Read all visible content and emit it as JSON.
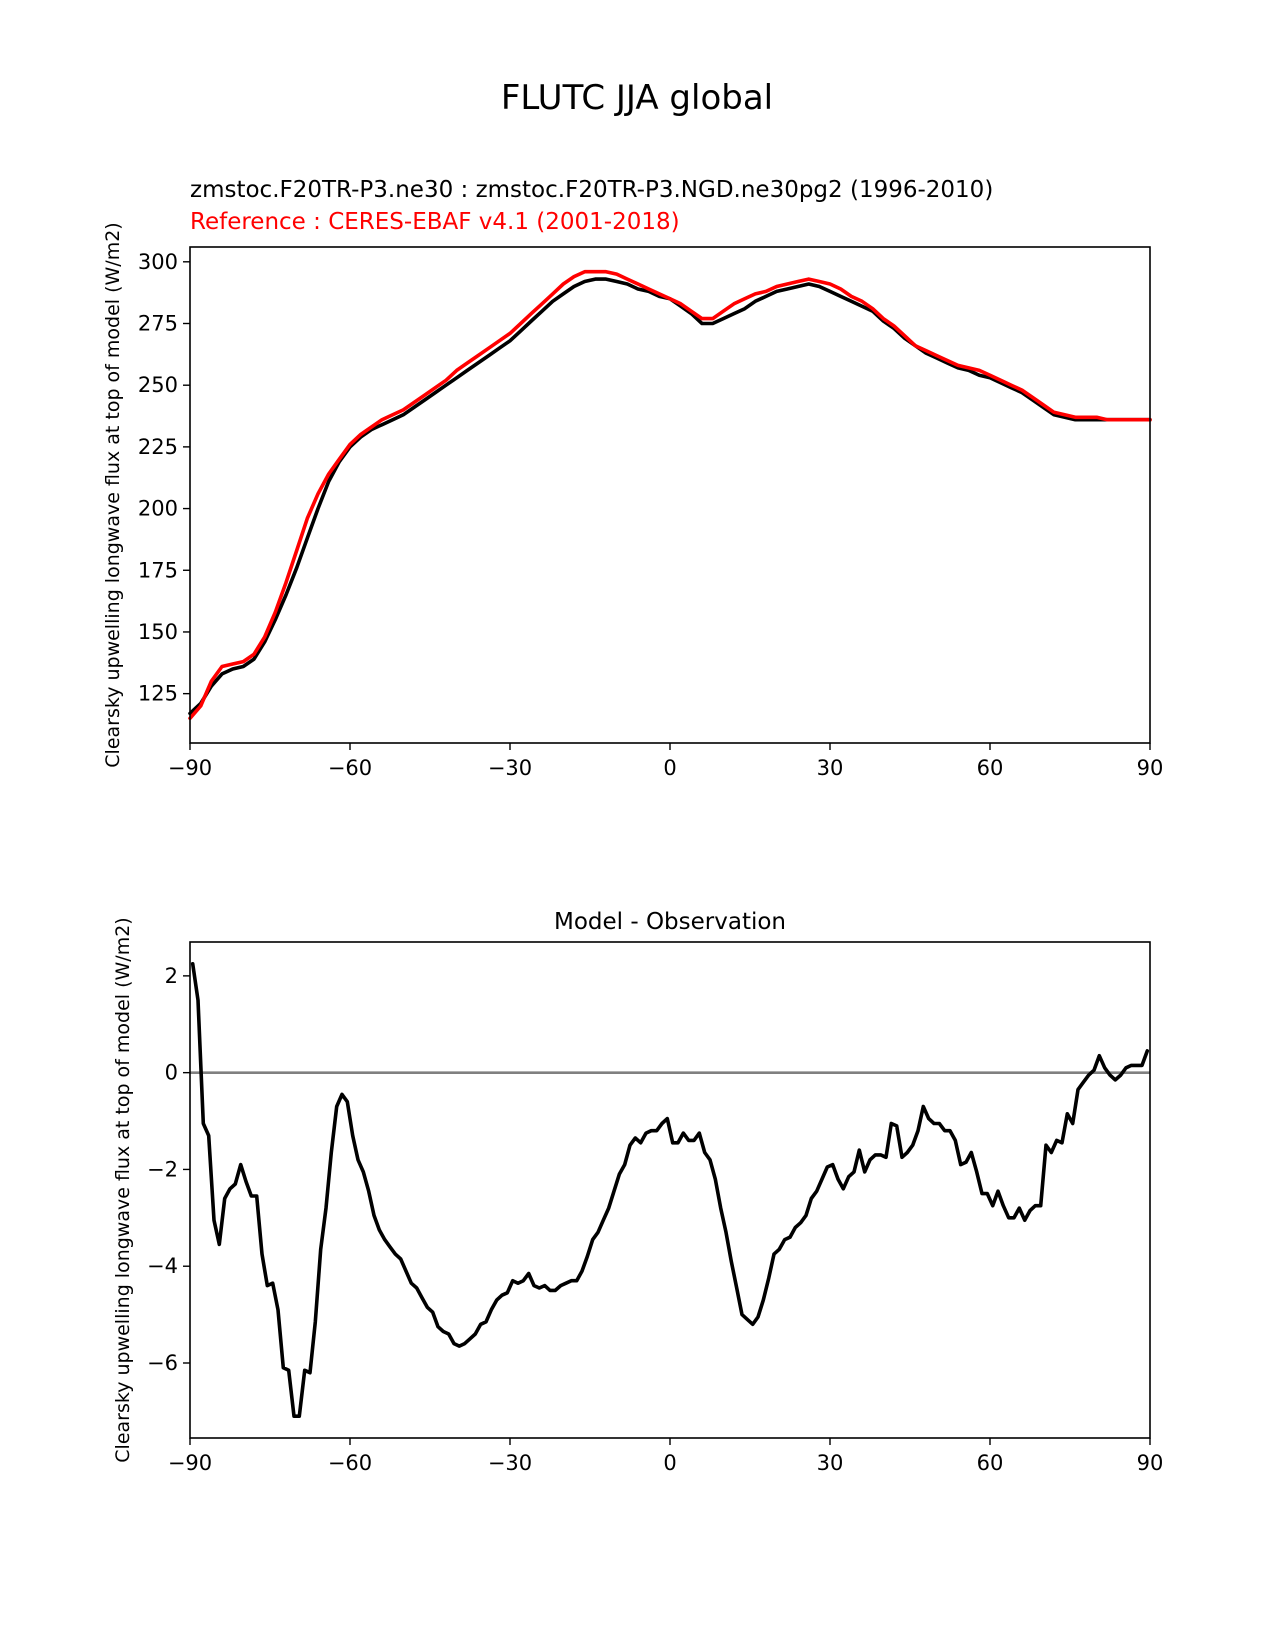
{
  "figure": {
    "title": "FLUTC JJA global"
  },
  "chart_data": [
    {
      "type": "line",
      "subtitle": "zmstoc.F20TR-P3.ne30 : zmstoc.F20TR-P3.NGD.ne30pg2 (1996-2010)",
      "reference_label": "Reference : CERES-EBAF v4.1 (2001-2018)",
      "xlabel": "",
      "ylabel": "Clearsky upwelling longwave flux at top of model (W/m2)",
      "xlim": [
        -90,
        90
      ],
      "ylim": [
        105,
        306
      ],
      "xticks": [
        -90,
        -60,
        -30,
        0,
        30,
        60,
        90
      ],
      "xtick_labels": [
        "−90",
        "−60",
        "−30",
        "0",
        "30",
        "60",
        "90"
      ],
      "yticks": [
        125,
        150,
        175,
        200,
        225,
        250,
        275,
        300
      ],
      "ytick_labels": [
        "125",
        "150",
        "175",
        "200",
        "225",
        "250",
        "275",
        "300"
      ],
      "grid": false,
      "series": [
        {
          "color": "#000000",
          "x": [
            -90,
            -88,
            -86,
            -84,
            -82,
            -80,
            -78,
            -76,
            -74,
            -72,
            -70,
            -68,
            -66,
            -64,
            -62,
            -60,
            -58,
            -56,
            -54,
            -52,
            -50,
            -48,
            -46,
            -44,
            -42,
            -40,
            -38,
            -36,
            -34,
            -32,
            -30,
            -28,
            -26,
            -24,
            -22,
            -20,
            -18,
            -16,
            -14,
            -12,
            -10,
            -8,
            -6,
            -4,
            -2,
            0,
            2,
            4,
            6,
            8,
            10,
            12,
            14,
            16,
            18,
            20,
            22,
            24,
            26,
            28,
            30,
            32,
            34,
            36,
            38,
            40,
            42,
            44,
            46,
            48,
            50,
            52,
            54,
            56,
            58,
            60,
            62,
            64,
            66,
            68,
            70,
            72,
            74,
            76,
            78,
            80,
            82,
            84,
            86,
            88,
            90
          ],
          "y": [
            117,
            121,
            128,
            133,
            135,
            136,
            139,
            146,
            155,
            165,
            176,
            188,
            200,
            211,
            219,
            225,
            229,
            232,
            234,
            236,
            238,
            241,
            244,
            247,
            250,
            253,
            256,
            259,
            262,
            265,
            268,
            272,
            276,
            280,
            284,
            287,
            290,
            292,
            293,
            293,
            292,
            291,
            289,
            288,
            286,
            285,
            282,
            279,
            275,
            275,
            277,
            279,
            281,
            284,
            286,
            288,
            289,
            290,
            291,
            290,
            288,
            286,
            284,
            282,
            280,
            276,
            273,
            269,
            266,
            263,
            261,
            259,
            257,
            256,
            254,
            253,
            251,
            249,
            247,
            244,
            241,
            238,
            237,
            236,
            236,
            236,
            236,
            236,
            236,
            236,
            236
          ]
        },
        {
          "color": "#ff0000",
          "x": [
            -90,
            -88,
            -86,
            -84,
            -82,
            -80,
            -78,
            -76,
            -74,
            -72,
            -70,
            -68,
            -66,
            -64,
            -62,
            -60,
            -58,
            -56,
            -54,
            -52,
            -50,
            -48,
            -46,
            -44,
            -42,
            -40,
            -38,
            -36,
            -34,
            -32,
            -30,
            -28,
            -26,
            -24,
            -22,
            -20,
            -18,
            -16,
            -14,
            -12,
            -10,
            -8,
            -6,
            -4,
            -2,
            0,
            2,
            4,
            6,
            8,
            10,
            12,
            14,
            16,
            18,
            20,
            22,
            24,
            26,
            28,
            30,
            32,
            34,
            36,
            38,
            40,
            42,
            44,
            46,
            48,
            50,
            52,
            54,
            56,
            58,
            60,
            62,
            64,
            66,
            68,
            70,
            72,
            74,
            76,
            78,
            80,
            82,
            84,
            86,
            88,
            90
          ],
          "y": [
            115,
            120,
            130,
            136,
            137,
            138,
            141,
            148,
            158,
            170,
            183,
            196,
            206,
            214,
            220,
            226,
            230,
            233,
            236,
            238,
            240,
            243,
            246,
            249,
            252,
            256,
            259,
            262,
            265,
            268,
            271,
            275,
            279,
            283,
            287,
            291,
            294,
            296,
            296,
            296,
            295,
            293,
            291,
            289,
            287,
            285,
            283,
            280,
            277,
            277,
            280,
            283,
            285,
            287,
            288,
            290,
            291,
            292,
            293,
            292,
            291,
            289,
            286,
            284,
            281,
            277,
            274,
            270,
            266,
            264,
            262,
            260,
            258,
            257,
            256,
            254,
            252,
            250,
            248,
            245,
            242,
            239,
            238,
            237,
            237,
            237,
            236,
            236,
            236,
            236,
            236
          ]
        }
      ]
    },
    {
      "type": "line",
      "title": "Model - Observation",
      "xlabel": "",
      "ylabel": "Clearsky upwelling longwave flux at top of model (W/m2)",
      "xlim": [
        -90,
        90
      ],
      "ylim": [
        -7.55,
        2.7
      ],
      "xticks": [
        -90,
        -60,
        -30,
        0,
        30,
        60,
        90
      ],
      "xtick_labels": [
        "−90",
        "−60",
        "−30",
        "0",
        "30",
        "60",
        "90"
      ],
      "yticks": [
        -6,
        -4,
        -2,
        0,
        2
      ],
      "ytick_labels": [
        "−6",
        "−4",
        "−2",
        "0",
        "2"
      ],
      "zero_line_color": "#808080",
      "grid": false,
      "series": [
        {
          "color": "#000000",
          "x": [
            -89.5,
            -88.5,
            -87.5,
            -86.5,
            -85.5,
            -84.5,
            -83.5,
            -82.5,
            -81.5,
            -80.5,
            -79.5,
            -78.5,
            -77.5,
            -76.5,
            -75.5,
            -74.5,
            -73.5,
            -72.5,
            -71.5,
            -70.5,
            -69.5,
            -68.5,
            -67.5,
            -66.5,
            -65.5,
            -64.5,
            -63.5,
            -62.5,
            -61.5,
            -60.5,
            -59.5,
            -58.5,
            -57.5,
            -56.5,
            -55.5,
            -54.5,
            -53.5,
            -52.5,
            -51.5,
            -50.5,
            -49.5,
            -48.5,
            -47.5,
            -46.5,
            -45.5,
            -44.5,
            -43.5,
            -42.5,
            -41.5,
            -40.5,
            -39.5,
            -38.5,
            -37.5,
            -36.5,
            -35.5,
            -34.5,
            -33.5,
            -32.5,
            -31.5,
            -30.5,
            -29.5,
            -28.5,
            -27.5,
            -26.5,
            -25.5,
            -24.5,
            -23.5,
            -22.5,
            -21.5,
            -20.5,
            -19.5,
            -18.5,
            -17.5,
            -16.5,
            -15.5,
            -14.5,
            -13.5,
            -12.5,
            -11.5,
            -10.5,
            -9.5,
            -8.5,
            -7.5,
            -6.5,
            -5.5,
            -4.5,
            -3.5,
            -2.5,
            -1.5,
            -0.5,
            0.5,
            1.5,
            2.5,
            3.5,
            4.5,
            5.5,
            6.5,
            7.5,
            8.5,
            9.5,
            10.5,
            11.5,
            12.5,
            13.5,
            14.5,
            15.5,
            16.5,
            17.5,
            18.5,
            19.5,
            20.5,
            21.5,
            22.5,
            23.5,
            24.5,
            25.5,
            26.5,
            27.5,
            28.5,
            29.5,
            30.5,
            31.5,
            32.5,
            33.5,
            34.5,
            35.5,
            36.5,
            37.5,
            38.5,
            39.5,
            40.5,
            41.5,
            42.5,
            43.5,
            44.5,
            45.5,
            46.5,
            47.5,
            48.5,
            49.5,
            50.5,
            51.5,
            52.5,
            53.5,
            54.5,
            55.5,
            56.5,
            57.5,
            58.5,
            59.5,
            60.5,
            61.5,
            62.5,
            63.5,
            64.5,
            65.5,
            66.5,
            67.5,
            68.5,
            69.5,
            70.5,
            71.5,
            72.5,
            73.5,
            74.5,
            75.5,
            76.5,
            77.5,
            78.5,
            79.5,
            80.5,
            81.5,
            82.5,
            83.5,
            84.5,
            85.5,
            86.5,
            87.5,
            88.5,
            89.5
          ],
          "y": [
            2.25,
            1.5,
            -1.05,
            -1.3,
            -3.05,
            -3.55,
            -2.6,
            -2.4,
            -2.3,
            -1.9,
            -2.25,
            -2.55,
            -2.55,
            -3.75,
            -4.4,
            -4.35,
            -4.9,
            -6.1,
            -6.15,
            -7.1,
            -7.1,
            -6.15,
            -6.2,
            -5.15,
            -3.65,
            -2.8,
            -1.65,
            -0.7,
            -0.45,
            -0.6,
            -1.3,
            -1.8,
            -2.05,
            -2.45,
            -2.95,
            -3.25,
            -3.45,
            -3.6,
            -3.75,
            -3.85,
            -4.1,
            -4.35,
            -4.45,
            -4.65,
            -4.85,
            -4.95,
            -5.25,
            -5.35,
            -5.4,
            -5.6,
            -5.65,
            -5.6,
            -5.5,
            -5.4,
            -5.2,
            -5.15,
            -4.9,
            -4.7,
            -4.6,
            -4.55,
            -4.3,
            -4.35,
            -4.3,
            -4.15,
            -4.4,
            -4.45,
            -4.4,
            -4.5,
            -4.5,
            -4.4,
            -4.35,
            -4.3,
            -4.3,
            -4.1,
            -3.8,
            -3.45,
            -3.3,
            -3.05,
            -2.8,
            -2.45,
            -2.1,
            -1.9,
            -1.5,
            -1.35,
            -1.45,
            -1.25,
            -1.2,
            -1.2,
            -1.05,
            -0.95,
            -1.45,
            -1.45,
            -1.25,
            -1.4,
            -1.4,
            -1.25,
            -1.65,
            -1.8,
            -2.2,
            -2.8,
            -3.3,
            -3.9,
            -4.45,
            -5.0,
            -5.1,
            -5.2,
            -5.05,
            -4.7,
            -4.25,
            -3.75,
            -3.65,
            -3.45,
            -3.4,
            -3.2,
            -3.1,
            -2.95,
            -2.6,
            -2.45,
            -2.2,
            -1.95,
            -1.9,
            -2.2,
            -2.4,
            -2.15,
            -2.05,
            -1.6,
            -2.05,
            -1.8,
            -1.7,
            -1.7,
            -1.75,
            -1.05,
            -1.1,
            -1.75,
            -1.65,
            -1.5,
            -1.2,
            -0.7,
            -0.95,
            -1.05,
            -1.05,
            -1.2,
            -1.2,
            -1.4,
            -1.9,
            -1.85,
            -1.65,
            -2.05,
            -2.5,
            -2.5,
            -2.75,
            -2.45,
            -2.75,
            -3.0,
            -3.0,
            -2.8,
            -3.05,
            -2.85,
            -2.75,
            -2.75,
            -1.5,
            -1.65,
            -1.4,
            -1.45,
            -0.85,
            -1.05,
            -0.35,
            -0.2,
            -0.05,
            0.05,
            0.35,
            0.1,
            -0.05,
            -0.15,
            -0.05,
            0.1,
            0.15,
            0.15,
            0.15,
            0.45
          ]
        }
      ]
    }
  ]
}
